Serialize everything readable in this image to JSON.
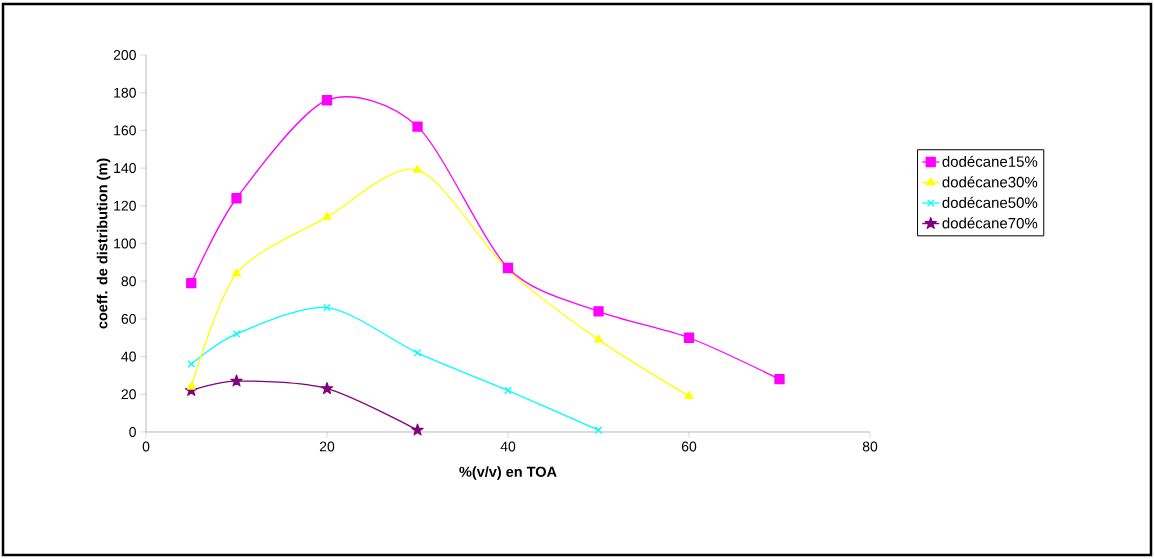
{
  "chart_data": {
    "type": "line",
    "xlabel": "%(v/v) en TOA",
    "ylabel": "coeff. de distribution (m)",
    "xlim": [
      0,
      80
    ],
    "xticks": [
      0,
      20,
      40,
      60,
      80
    ],
    "ylim": [
      0,
      200
    ],
    "yticks": [
      0,
      20,
      40,
      60,
      80,
      100,
      120,
      140,
      160,
      180,
      200
    ],
    "legend": "right",
    "grid": false,
    "series": [
      {
        "name": "dodécane15%",
        "color": "#ff00ff",
        "marker": "square",
        "x": [
          5,
          10,
          20,
          30,
          40,
          50,
          60,
          70
        ],
        "values": [
          79,
          124,
          176,
          162,
          87,
          64,
          50,
          28
        ]
      },
      {
        "name": "dodécane30%",
        "color": "#ffff00",
        "marker": "triangle",
        "x": [
          5,
          10,
          20,
          30,
          40,
          50,
          60
        ],
        "values": [
          24,
          84,
          114,
          139,
          86,
          49,
          19
        ]
      },
      {
        "name": "dodécane50%",
        "color": "#00ffff",
        "marker": "cross",
        "x": [
          5,
          10,
          20,
          30,
          40,
          50
        ],
        "values": [
          36,
          52,
          66,
          42,
          22,
          1
        ]
      },
      {
        "name": "dodécane70%",
        "color": "#800080",
        "marker": "star",
        "x": [
          5,
          10,
          20,
          30
        ],
        "values": [
          22,
          27,
          23,
          1
        ]
      }
    ]
  }
}
